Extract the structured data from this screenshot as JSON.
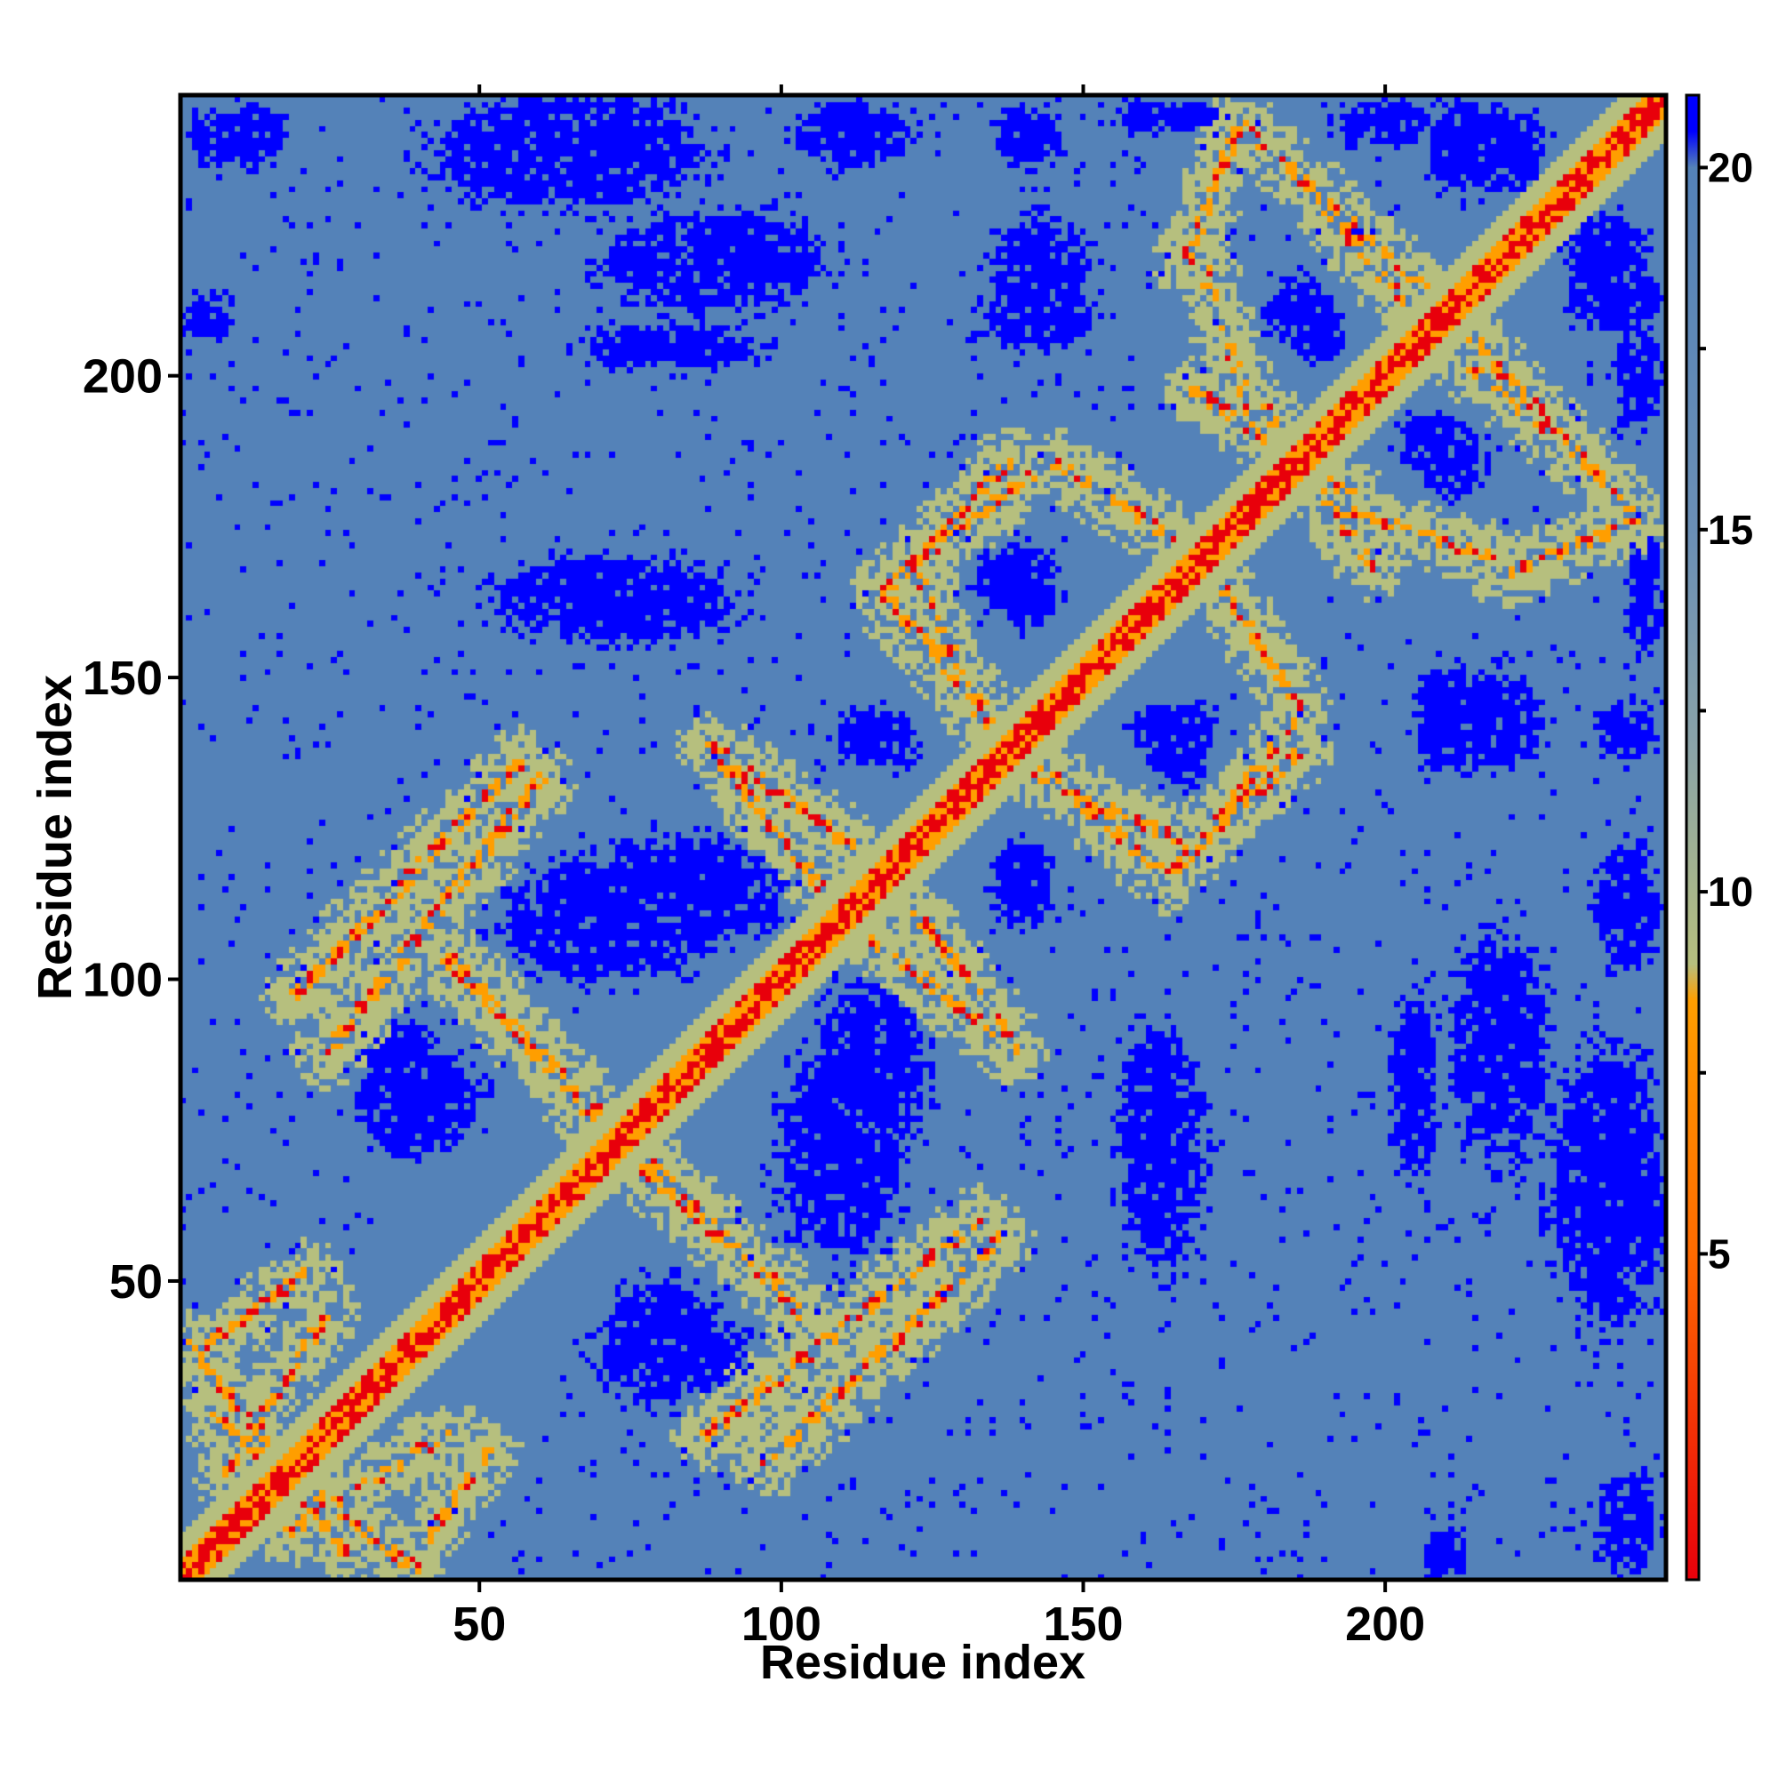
{
  "chart_data": {
    "type": "heatmap",
    "title": "",
    "xlabel": "Residue index",
    "ylabel": "Residue index",
    "n_residues": 246,
    "xlim": [
      1,
      246
    ],
    "ylim": [
      1,
      246
    ],
    "x_ticks": [
      50,
      100,
      150,
      200
    ],
    "y_ticks": [
      50,
      100,
      150,
      200
    ],
    "colorbar": {
      "range": [
        0.5,
        21
      ],
      "ticks": [
        5,
        10,
        15,
        20
      ],
      "stops": [
        {
          "value": 0.5,
          "color": "#e8000b"
        },
        {
          "value": 5,
          "color": "#ff6a00"
        },
        {
          "value": 8.5,
          "color": "#ff9e00"
        },
        {
          "value": 9,
          "color": "#b6bf7e"
        },
        {
          "value": 12,
          "color": "#8aa3a8"
        },
        {
          "value": 15,
          "color": "#6a8fb6"
        },
        {
          "value": 20,
          "color": "#5482b8"
        },
        {
          "value": 20.5,
          "color": "#0000ff"
        },
        {
          "value": 21,
          "color": "#0000ff"
        }
      ]
    },
    "colors": {
      "far": "#0000ff",
      "background": "#5482b8",
      "near_band": "#b6bf7e",
      "contact": "#ff9e00",
      "close": "#e8000b"
    },
    "diagonal_band_width": 4,
    "contact_bands": [
      {
        "from": [
          5,
          28
        ],
        "to": [
          40,
          2
        ],
        "width": 2.2
      },
      {
        "from": [
          18,
          8
        ],
        "to": [
          45,
          25
        ],
        "width": 2.2
      },
      {
        "from": [
          3,
          38
        ],
        "to": [
          22,
          52
        ],
        "width": 2.0
      },
      {
        "from": [
          20,
          98
        ],
        "to": [
          57,
          136
        ],
        "width": 2.4
      },
      {
        "from": [
          45,
          103
        ],
        "to": [
          72,
          76
        ],
        "width": 2.4
      },
      {
        "from": [
          76,
          70
        ],
        "to": [
          103,
          46
        ],
        "width": 2.4
      },
      {
        "from": [
          88,
          25
        ],
        "to": [
          133,
          60
        ],
        "width": 2.4
      },
      {
        "from": [
          90,
          138
        ],
        "to": [
          112,
          122
        ],
        "width": 2.2
      },
      {
        "from": [
          115,
          107
        ],
        "to": [
          139,
          88
        ],
        "width": 2.2
      },
      {
        "from": [
          117,
          164
        ],
        "to": [
          144,
          133
        ],
        "width": 2.4
      },
      {
        "from": [
          117,
          164
        ],
        "to": [
          138,
          186
        ],
        "width": 2.2
      },
      {
        "from": [
          148,
          131
        ],
        "to": [
          169,
          122
        ],
        "width": 2.2
      },
      {
        "from": [
          169,
          122
        ],
        "to": [
          185,
          143
        ],
        "width": 2.2
      },
      {
        "from": [
          145,
          186
        ],
        "to": [
          165,
          173
        ],
        "width": 2.2
      },
      {
        "from": [
          167,
          219
        ],
        "to": [
          176,
          242
        ],
        "width": 2.2
      },
      {
        "from": [
          176,
          242
        ],
        "to": [
          209,
          212
        ],
        "width": 2.2
      },
      {
        "from": [
          168,
          198
        ],
        "to": [
          195,
          180
        ],
        "width": 2.2
      },
      {
        "from": [
          193,
          178
        ],
        "to": [
          218,
          170
        ],
        "width": 2.2
      },
      {
        "from": [
          210,
          205
        ],
        "to": [
          228,
          190
        ],
        "width": 2.2
      }
    ],
    "far_blobs": [
      {
        "cx": 84,
        "cy": 115,
        "rx": 16,
        "ry": 9
      },
      {
        "cx": 78,
        "cy": 162,
        "rx": 14,
        "ry": 5
      },
      {
        "cx": 82,
        "cy": 205,
        "rx": 14,
        "ry": 4
      },
      {
        "cx": 110,
        "cy": 72,
        "rx": 10,
        "ry": 17
      },
      {
        "cx": 40,
        "cy": 80,
        "rx": 10,
        "ry": 9
      },
      {
        "cx": 82,
        "cy": 38,
        "rx": 12,
        "ry": 7
      },
      {
        "cx": 143,
        "cy": 210,
        "rx": 9,
        "ry": 5
      },
      {
        "cx": 186,
        "cy": 211,
        "rx": 6,
        "ry": 5
      },
      {
        "cx": 138,
        "cy": 166,
        "rx": 6,
        "ry": 5
      },
      {
        "cx": 117,
        "cy": 140,
        "rx": 6,
        "ry": 5
      },
      {
        "cx": 140,
        "cy": 115,
        "rx": 5,
        "ry": 6
      },
      {
        "cx": 165,
        "cy": 141,
        "rx": 7,
        "ry": 5
      },
      {
        "cx": 163,
        "cy": 72,
        "rx": 7,
        "ry": 19
      },
      {
        "cx": 219,
        "cy": 89,
        "rx": 8,
        "ry": 18
      },
      {
        "cx": 218,
        "cy": 143,
        "rx": 8,
        "ry": 8
      },
      {
        "cx": 208,
        "cy": 189,
        "rx": 6,
        "ry": 5
      },
      {
        "cx": 237,
        "cy": 65,
        "rx": 9,
        "ry": 22
      },
      {
        "cx": 240,
        "cy": 111,
        "rx": 6,
        "ry": 5
      },
      {
        "cx": 240,
        "cy": 141,
        "rx": 5,
        "ry": 5
      },
      {
        "cx": 238,
        "cy": 213,
        "rx": 8,
        "ry": 6
      },
      {
        "cx": 200,
        "cy": 242,
        "rx": 8,
        "ry": 4
      },
      {
        "cx": 220,
        "cy": 237,
        "rx": 7,
        "ry": 7
      },
      {
        "cx": 70,
        "cy": 240,
        "rx": 14,
        "ry": 6
      },
      {
        "cx": 112,
        "cy": 240,
        "rx": 10,
        "ry": 5
      },
      {
        "cx": 165,
        "cy": 243,
        "rx": 10,
        "ry": 3
      },
      {
        "cx": 10,
        "cy": 240,
        "rx": 8,
        "ry": 5
      },
      {
        "cx": 5,
        "cy": 210,
        "rx": 4,
        "ry": 4
      },
      {
        "cx": 60,
        "cy": 244,
        "rx": 6,
        "ry": 3
      }
    ]
  }
}
